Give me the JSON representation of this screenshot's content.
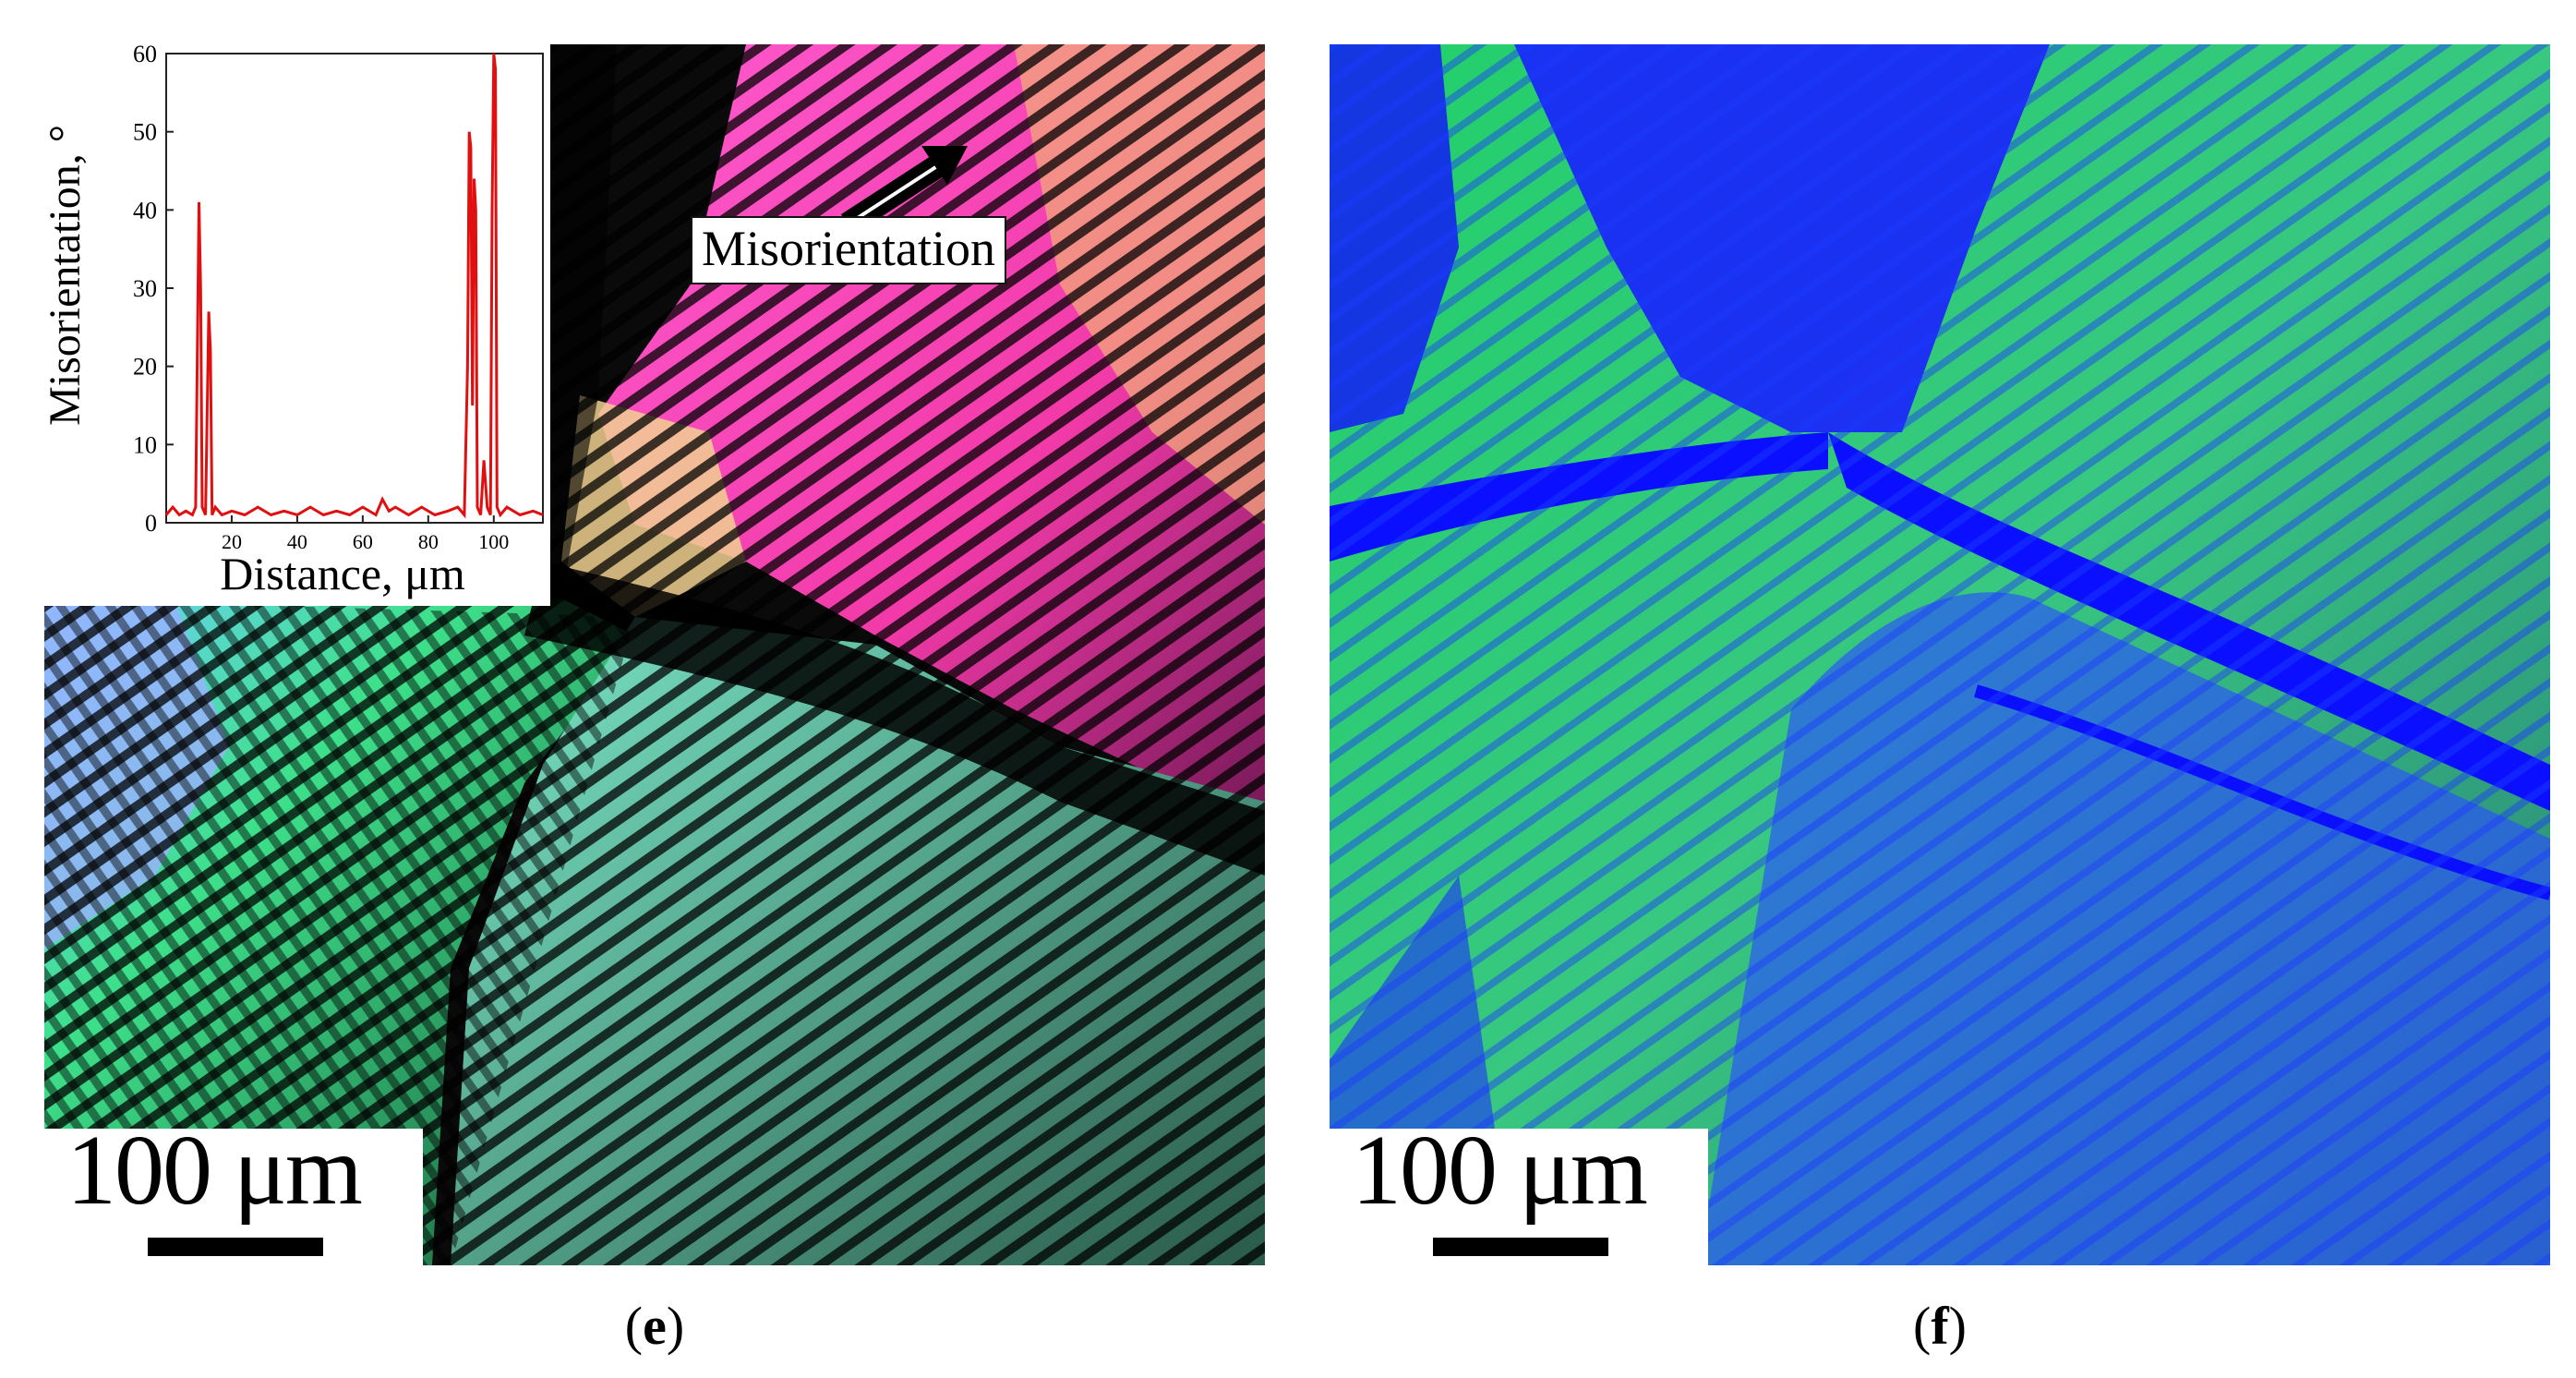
{
  "panels": [
    {
      "id": "e",
      "caption_letter": "e",
      "scale_text": "100 μm"
    },
    {
      "id": "f",
      "caption_letter": "f",
      "scale_text": "100 μm"
    }
  ],
  "annotation": {
    "label": "Misorientation"
  },
  "chart_data": {
    "type": "line",
    "title": "",
    "xlabel": "Distance, μm",
    "ylabel": "Misorientation, °",
    "xlim": [
      0,
      115
    ],
    "ylim": [
      0,
      60
    ],
    "x_ticks": [
      20,
      40,
      60,
      80,
      100
    ],
    "y_ticks": [
      0,
      10,
      20,
      30,
      40,
      50,
      60
    ],
    "grid": false,
    "series": [
      {
        "color": "#e01010",
        "x": [
          0,
          2,
          4,
          6,
          8,
          9,
          10,
          10.5,
          11,
          12,
          13,
          13.5,
          14,
          15,
          17,
          20,
          24,
          28,
          32,
          36,
          40,
          44,
          48,
          52,
          56,
          60,
          64,
          66,
          68,
          70,
          74,
          78,
          82,
          86,
          89,
          91,
          92,
          92.5,
          93,
          93.5,
          94,
          94.5,
          95,
          96,
          97,
          98,
          99,
          99.5,
          100,
          100.5,
          101,
          102,
          104,
          108,
          112,
          115
        ],
        "y": [
          1,
          2,
          1,
          1.5,
          1,
          2,
          41,
          30,
          2,
          1,
          27,
          22,
          1,
          2,
          1,
          1.5,
          1,
          2,
          1,
          1.5,
          1,
          2,
          1,
          1.5,
          1,
          2,
          1,
          3,
          1.5,
          2,
          1,
          2,
          1,
          1.5,
          2,
          1,
          20,
          50,
          48,
          15,
          44,
          40,
          2,
          1,
          8,
          2,
          1,
          40,
          60,
          58,
          2,
          1,
          2,
          1,
          1.5,
          1
        ]
      }
    ]
  }
}
